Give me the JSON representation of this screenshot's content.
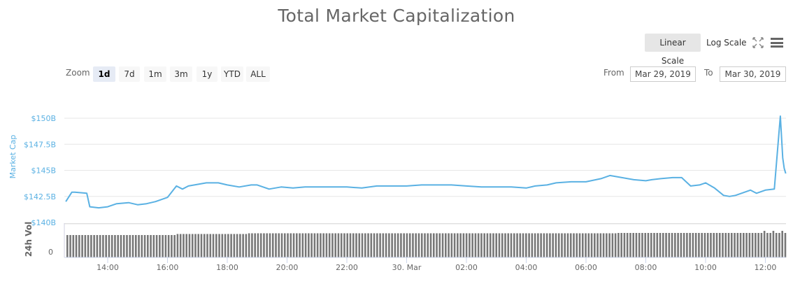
{
  "title": "Total Market Capitalization",
  "scale_toggle": {
    "linear_label": "Linear Scale",
    "log_label": "Log Scale",
    "active": "linear"
  },
  "icons": {
    "fullscreen": "fullscreen-icon",
    "menu": "hamburger-menu-icon"
  },
  "range_selector": {
    "zoom_label": "Zoom",
    "buttons": [
      "1d",
      "7d",
      "1m",
      "3m",
      "1y",
      "YTD",
      "ALL"
    ],
    "active": "1d",
    "from_label": "From",
    "from_value": "Mar 29, 2019",
    "to_label": "To",
    "to_value": "Mar 30, 2019"
  },
  "colors": {
    "line": "#5AB1E3",
    "volume": "#777777",
    "axis_label": "#5AB1E3",
    "grid": "#e6e6e6"
  },
  "chart_data": {
    "type": "line",
    "title": "Total Market Capitalization",
    "ylabel": "Market Cap",
    "ylabel2": "24h Vol",
    "y_ticks": [
      "$140B",
      "$142.5B",
      "$145B",
      "$147.5B",
      "$150B"
    ],
    "ylim": [
      140,
      150
    ],
    "volume_ticks": [
      "0"
    ],
    "x_ticks": [
      "14:00",
      "16:00",
      "18:00",
      "20:00",
      "22:00",
      "30. Mar",
      "02:00",
      "04:00",
      "06:00",
      "08:00",
      "10:00",
      "12:00"
    ],
    "grid": true,
    "x_hours": [
      12.6,
      12.8,
      12.9,
      13.3,
      13.4,
      13.7,
      14.0,
      14.3,
      14.7,
      15.0,
      15.3,
      15.6,
      16.0,
      16.3,
      16.5,
      16.7,
      16.9,
      17.3,
      17.7,
      18.0,
      18.4,
      18.8,
      19.0,
      19.4,
      19.8,
      20.2,
      20.6,
      21.0,
      21.5,
      22.0,
      22.5,
      23.0,
      23.5,
      24.0,
      24.5,
      25.0,
      25.5,
      26.0,
      26.5,
      27.0,
      27.5,
      28.0,
      28.3,
      28.7,
      29.0,
      29.5,
      30.0,
      30.5,
      30.8,
      31.2,
      31.6,
      32.0,
      32.2,
      32.5,
      32.9,
      33.2,
      33.5,
      33.8,
      34.0,
      34.3,
      34.6,
      34.8,
      35.0,
      35.3,
      35.5,
      35.7,
      36.0,
      36.3,
      36.5,
      36.58,
      36.63,
      36.68
    ],
    "values": [
      142.0,
      142.9,
      142.9,
      142.8,
      141.5,
      141.4,
      141.5,
      141.8,
      141.9,
      141.7,
      141.8,
      142.0,
      142.4,
      143.5,
      143.2,
      143.5,
      143.6,
      143.8,
      143.8,
      143.6,
      143.4,
      143.6,
      143.6,
      143.2,
      143.4,
      143.3,
      143.4,
      143.4,
      143.4,
      143.4,
      143.3,
      143.5,
      143.5,
      143.5,
      143.6,
      143.6,
      143.6,
      143.5,
      143.4,
      143.4,
      143.4,
      143.3,
      143.5,
      143.6,
      143.8,
      143.9,
      143.9,
      144.2,
      144.5,
      144.3,
      144.1,
      144.0,
      144.1,
      144.2,
      144.3,
      144.3,
      143.5,
      143.6,
      143.8,
      143.3,
      142.6,
      142.5,
      142.6,
      142.9,
      143.1,
      142.8,
      143.1,
      143.2,
      150.2,
      146.2,
      145.2,
      144.7
    ],
    "volume_note": "dense bars, roughly uniform height ~78-85% of volume pane, slightly taller toward the end"
  }
}
